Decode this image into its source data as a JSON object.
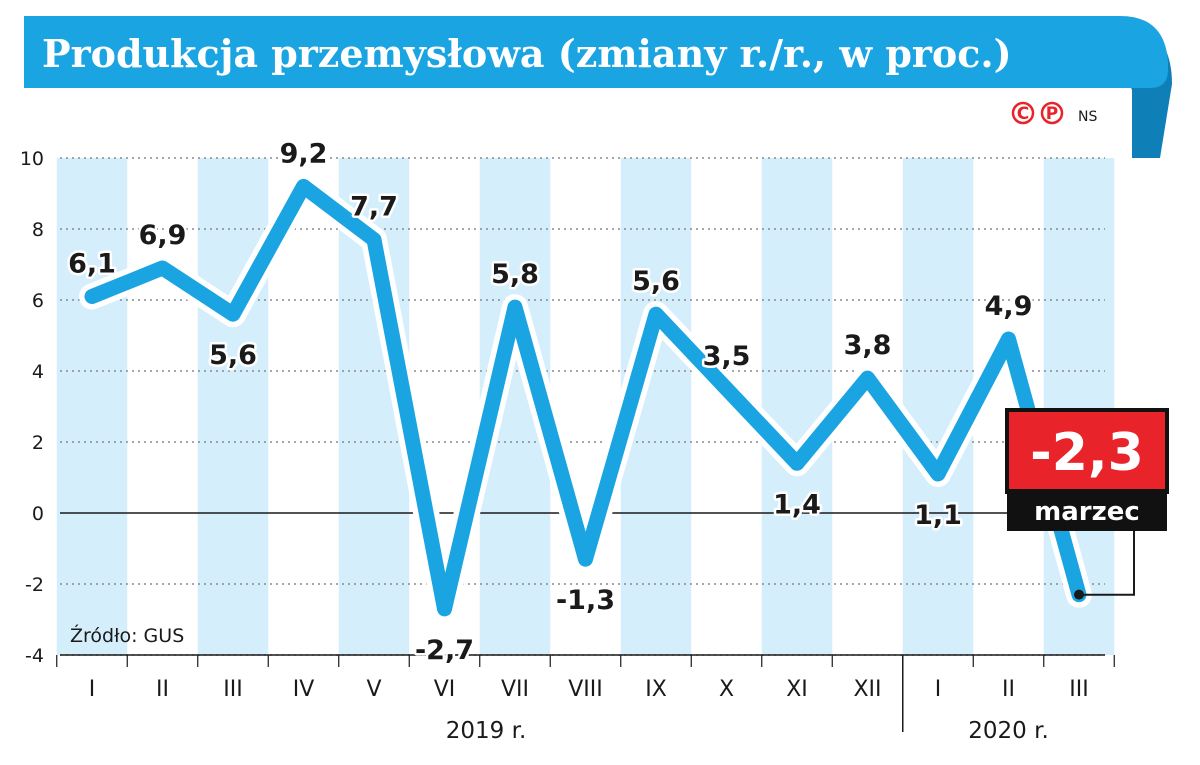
{
  "title": "Produkcja przemysłowa (zmiany r./r., w proc.)",
  "credit": {
    "c": "C",
    "p": "P",
    "ns": "NS"
  },
  "source": "Źródło: GUS",
  "colors": {
    "accent": "#1ba4e2",
    "line": "#1ba4e2",
    "band": "#d5eefb",
    "highlight": "#e8232a",
    "dark": "#111111"
  },
  "highlight": {
    "value_label": "-2,3",
    "sub_label": "marzec"
  },
  "chart_data": {
    "type": "line",
    "title": "Produkcja przemysłowa (zmiany r./r., w proc.)",
    "categories": [
      "I",
      "II",
      "III",
      "IV",
      "V",
      "VI",
      "VII",
      "VIII",
      "IX",
      "X",
      "XI",
      "XII",
      "I",
      "II",
      "III"
    ],
    "values": [
      6.1,
      6.9,
      5.6,
      9.2,
      7.7,
      -2.7,
      5.8,
      -1.3,
      5.6,
      3.5,
      1.4,
      3.8,
      1.1,
      4.9,
      -2.3
    ],
    "value_labels": [
      "6,1",
      "6,9",
      "5,6",
      "9,2",
      "7,7",
      "-2,7",
      "5,8",
      "-1,3",
      "5,6",
      "3,5",
      "1,4",
      "3,8",
      "1,1",
      "4,9",
      ""
    ],
    "year_groups": [
      {
        "label": "2019 r.",
        "from": 0,
        "to": 11
      },
      {
        "label": "2020 r.",
        "from": 12,
        "to": 14
      }
    ],
    "yticks": [
      "10",
      "8",
      "6",
      "4",
      "2",
      "0",
      "-2",
      "-4"
    ],
    "ylim": [
      -4,
      10
    ],
    "grid": true,
    "xlabel": "",
    "ylabel": ""
  }
}
